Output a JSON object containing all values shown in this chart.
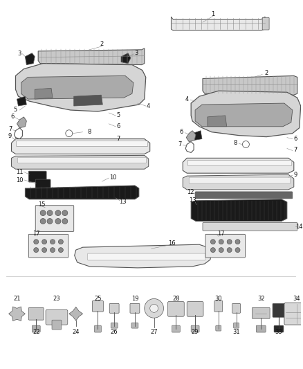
{
  "bg_color": "#ffffff",
  "fig_width": 4.38,
  "fig_height": 5.33,
  "dpi": 100,
  "lc": "#555555",
  "lc2": "#888888",
  "dark": "#1a1a1a",
  "mid": "#888888",
  "light": "#cccccc",
  "vlite": "#e8e8e8",
  "label_fs": 6.0,
  "label_color": "#111111"
}
